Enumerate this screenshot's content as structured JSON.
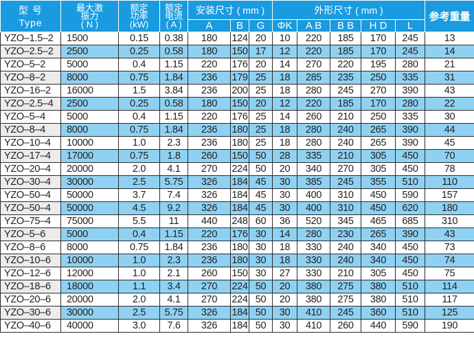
{
  "header": {
    "type_cn": "型 号",
    "type_en": "Type",
    "force": [
      "最大激",
      "振力",
      "( N )"
    ],
    "power": [
      "额定",
      "功率",
      "(kW)"
    ],
    "current": [
      "额定",
      "电流",
      "( A )"
    ],
    "install_group": "安装尺寸 ( mm )",
    "outline_group": "外形尺寸 ( mm )",
    "weight": "参考重量",
    "install_cols": [
      "A",
      "B",
      "G"
    ],
    "outline_cols": [
      "ΦK",
      "A B",
      "B B",
      "H D",
      "L"
    ]
  },
  "colors": {
    "header_bg": "#1a9be0",
    "stripe": "#8fd1f2",
    "type_stripe": "#ececec"
  },
  "rows": [
    [
      "YZO–1.5–2",
      "1500",
      "0.15",
      "0.38",
      "180",
      "124",
      "20",
      "10",
      "220",
      "185",
      "170",
      "245",
      "13"
    ],
    [
      "YZO–2.5–2",
      "2500",
      "0.25",
      "0.58",
      "180",
      "150",
      "17",
      "12",
      "220",
      "185",
      "170",
      "245",
      "14"
    ],
    [
      "YZO–5–2",
      "5000",
      "0.4",
      "1.15",
      "220",
      "176",
      "20",
      "14",
      "270",
      "220",
      "195",
      "280",
      "21"
    ],
    [
      "YZO–8–2",
      "8000",
      "0.75",
      "1.84",
      "236",
      "179",
      "25",
      "18",
      "285",
      "235",
      "250",
      "335",
      "31"
    ],
    [
      "YZO–16–2",
      "16000",
      "1.5",
      "3.84",
      "236",
      "200",
      "25",
      "18",
      "280",
      "245",
      "270",
      "390",
      "43"
    ],
    [
      "YZO–2.5–4",
      "2500",
      "0.25",
      "0.58",
      "180",
      "150",
      "20",
      "12",
      "220",
      "185",
      "170",
      "280",
      "22"
    ],
    [
      "YZO–5–4",
      "5000",
      "0.4",
      "1.15",
      "220",
      "176",
      "25",
      "14",
      "260",
      "210",
      "250",
      "335",
      "30"
    ],
    [
      "YZO–8–4",
      "8000",
      "0.75",
      "1.84",
      "236",
      "180",
      "25",
      "18",
      "280",
      "240",
      "265",
      "390",
      "44"
    ],
    [
      "YZO–10–4",
      "10000",
      "1.0",
      "2.3",
      "236",
      "180",
      "25",
      "18",
      "280",
      "240",
      "265",
      "390",
      "45"
    ],
    [
      "YZO–17–4",
      "17000",
      "0.75",
      "1.8",
      "260",
      "150",
      "50",
      "28",
      "335",
      "210",
      "305",
      "450",
      "70"
    ],
    [
      "YZO–20–4",
      "20000",
      "2.0",
      "4.1",
      "270",
      "224",
      "50",
      "20",
      "340",
      "270",
      "305",
      "450",
      "78"
    ],
    [
      "YZO–30–4",
      "30000",
      "2.5",
      "5.75",
      "326",
      "184",
      "45",
      "30",
      "385",
      "245",
      "355",
      "510",
      "110"
    ],
    [
      "YZO–50–4",
      "50000",
      "3.7",
      "7.4",
      "326",
      "184",
      "45",
      "30",
      "400",
      "310",
      "450",
      "590",
      "157"
    ],
    [
      "YZO–50–4",
      "50000",
      "4.5",
      "9.2",
      "326",
      "184",
      "45",
      "30",
      "400",
      "310",
      "450",
      "620",
      "180"
    ],
    [
      "YZO–75–4",
      "75000",
      "5.5",
      "11",
      "440",
      "248",
      "60",
      "36",
      "520",
      "345",
      "465",
      "685",
      "310"
    ],
    [
      "YZO–5–6",
      "5000",
      "0.4",
      "1.15",
      "220",
      "176",
      "30",
      "14",
      "280",
      "230",
      "265",
      "390",
      "43"
    ],
    [
      "YZO–8–6",
      "8000",
      "0.75",
      "1.84",
      "236",
      "180",
      "30",
      "18",
      "330",
      "240",
      "340",
      "450",
      "73"
    ],
    [
      "YZO–10–6",
      "10000",
      "1.0",
      "2.3",
      "236",
      "180",
      "30",
      "18",
      "330",
      "240",
      "340",
      "450",
      "74"
    ],
    [
      "YZO–12–6",
      "12000",
      "1.0",
      "2.1",
      "260",
      "150",
      "30",
      "27",
      "330",
      "210",
      "305",
      "450",
      "75"
    ],
    [
      "YZO–18–6",
      "18000",
      "1.1",
      "3.4",
      "270",
      "224",
      "50",
      "20",
      "380",
      "275",
      "380",
      "510",
      "114"
    ],
    [
      "YZO–20–6",
      "20000",
      "2.0",
      "4.1",
      "270",
      "224",
      "50",
      "20",
      "380",
      "275",
      "380",
      "510",
      "117"
    ],
    [
      "YZO–30–6",
      "30000",
      "2.5",
      "5.75",
      "326",
      "184",
      "50",
      "30",
      "410",
      "245",
      "360",
      "510",
      "125"
    ],
    [
      "YZO–40–6",
      "40000",
      "3.0",
      "7.6",
      "326",
      "184",
      "50",
      "30",
      "410",
      "260",
      "440",
      "590",
      "190"
    ]
  ]
}
